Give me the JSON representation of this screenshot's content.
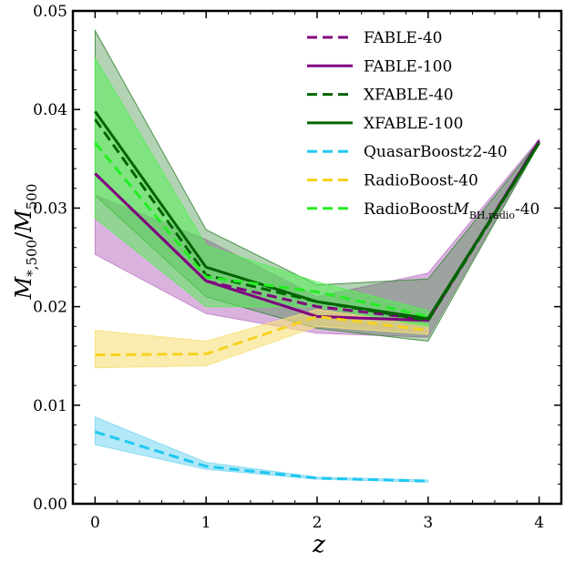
{
  "chart_data": {
    "type": "line",
    "title": "",
    "xlabel": "z",
    "ylabel_parts": {
      "main": "M",
      "sub1": "*,500",
      "slash": "/",
      "main2": "M",
      "sub2": "500"
    },
    "xlim": [
      -0.2,
      4.2
    ],
    "ylim": [
      0.0,
      0.05
    ],
    "xticks": [
      0,
      1,
      2,
      3,
      4
    ],
    "yticks": [
      0.0,
      0.01,
      0.02,
      0.03,
      0.04,
      0.05
    ],
    "xtick_labels": [
      "0",
      "1",
      "2",
      "3",
      "4"
    ],
    "ytick_labels": [
      "0.00",
      "0.01",
      "0.02",
      "0.03",
      "0.04",
      "0.05"
    ],
    "legend_position": "top-right",
    "series": [
      {
        "name": "FABLE-40",
        "legend_text": "FABLE-40",
        "color": "#800080",
        "dash": true,
        "x": [
          0,
          1,
          2,
          3,
          4
        ],
        "y": [
          0.0335,
          0.0226,
          0.02,
          0.0187,
          0.0368
        ],
        "lower": null,
        "upper": null
      },
      {
        "name": "FABLE-100",
        "legend_text": "FABLE-100",
        "color": "#800080",
        "dash": false,
        "x": [
          0,
          1,
          2,
          3,
          4
        ],
        "y": [
          0.0335,
          0.0226,
          0.019,
          0.0186,
          0.0368
        ],
        "lower": [
          0.0253,
          0.0193,
          0.0173,
          0.0169,
          0.0366
        ],
        "upper": [
          0.0313,
          0.0268,
          0.021,
          0.0234,
          0.037
        ],
        "fill": "#c080c8",
        "fill_opacity": 0.6
      },
      {
        "name": "XFABLE-40",
        "legend_text": "XFABLE-40",
        "color": "#006400",
        "dash": true,
        "x": [
          0,
          1,
          2,
          3,
          4
        ],
        "y": [
          0.039,
          0.0232,
          0.0205,
          0.0186,
          0.0366
        ],
        "lower": null,
        "upper": null
      },
      {
        "name": "XFABLE-100",
        "legend_text": "XFABLE-100",
        "color": "#006400",
        "dash": false,
        "x": [
          0,
          1,
          2,
          3,
          4
        ],
        "y": [
          0.0398,
          0.024,
          0.0205,
          0.0188,
          0.0366
        ],
        "lower": [
          0.0313,
          0.021,
          0.0178,
          0.0165,
          0.0365
        ],
        "upper": [
          0.048,
          0.0278,
          0.0222,
          0.0228,
          0.0368
        ],
        "fill": "#3a8a3a",
        "fill_opacity": 0.38
      },
      {
        "name": "QuasarBoostz2-40",
        "legend_text_parts": [
          "QuasarBoost",
          "z",
          "2-40"
        ],
        "color": "#1ec8f0",
        "dash": true,
        "x": [
          0,
          1,
          2,
          3
        ],
        "y": [
          0.0073,
          0.0038,
          0.0026,
          0.0023
        ],
        "lower": [
          0.006,
          0.0035,
          0.0025,
          0.0022
        ],
        "upper": [
          0.0088,
          0.0042,
          0.0027,
          0.0024
        ],
        "fill": "#7fd8f2",
        "fill_opacity": 0.6
      },
      {
        "name": "RadioBoost-40",
        "legend_text": "RadioBoost-40",
        "color": "#f5d21e",
        "dash": true,
        "x": [
          0,
          1,
          2,
          3
        ],
        "y": [
          0.0151,
          0.0152,
          0.019,
          0.0176
        ],
        "lower": [
          0.0138,
          0.014,
          0.018,
          0.0172
        ],
        "upper": [
          0.0176,
          0.0165,
          0.0197,
          0.0181
        ],
        "fill": "#f7e07a",
        "fill_opacity": 0.6
      },
      {
        "name": "RadioBoostMBH,radio-40",
        "legend_text_parts": [
          "RadioBoost",
          "M",
          "BH,radio",
          "-40"
        ],
        "color": "#22ee22",
        "dash": true,
        "x": [
          0,
          1,
          2,
          3
        ],
        "y": [
          0.0366,
          0.023,
          0.0215,
          0.019
        ],
        "lower": [
          0.029,
          0.02,
          0.02,
          0.018
        ],
        "upper": [
          0.0452,
          0.0262,
          0.0225,
          0.0196
        ],
        "fill": "#55ee55",
        "fill_opacity": 0.55
      }
    ]
  }
}
